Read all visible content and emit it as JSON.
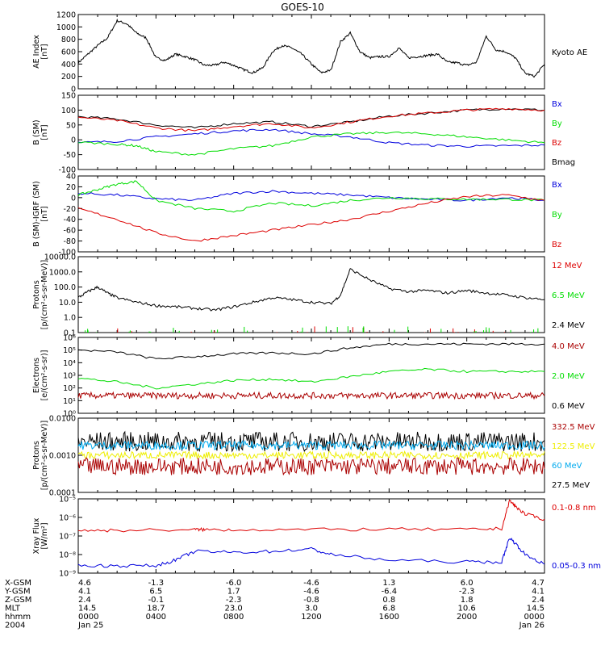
{
  "title": "GOES-10",
  "colors": {
    "black": "#000000",
    "red": "#dd0000",
    "green": "#00dd00",
    "blue": "#0000dd",
    "darkred": "#aa0000",
    "yellow": "#eeee00",
    "cyan": "#00aaee"
  },
  "chart_data": [
    {
      "type": "line",
      "name": "ae",
      "ylabel": "AE Index\n[nT]",
      "ylim": [
        0,
        1200
      ],
      "yticks": [
        "0",
        "200",
        "400",
        "600",
        "800",
        "1000",
        "1200"
      ],
      "legend": [
        {
          "label": "Kyoto AE",
          "color": "black"
        }
      ],
      "series": [
        {
          "name": "Kyoto AE",
          "color": "black",
          "x": [
            0,
            0.5,
            1,
            1.5,
            2,
            2.5,
            3,
            3.5,
            4,
            4.5,
            5,
            5.5,
            6,
            6.5,
            7,
            7.5,
            8,
            8.5,
            9,
            9.5,
            10,
            10.5,
            11,
            11.5,
            12,
            12.5,
            13,
            13.5,
            14,
            14.5,
            15,
            15.5,
            16,
            16.5,
            17,
            17.5,
            18,
            18.5,
            19,
            19.5,
            20,
            20.5,
            21,
            21.5,
            22,
            22.5,
            23,
            23.5,
            24
          ],
          "y": [
            420,
            560,
            700,
            820,
            1100,
            1050,
            900,
            820,
            500,
            460,
            560,
            520,
            470,
            380,
            380,
            430,
            380,
            310,
            260,
            340,
            600,
            700,
            660,
            560,
            400,
            260,
            300,
            760,
            900,
            600,
            500,
            520,
            520,
            660,
            500,
            520,
            540,
            560,
            430,
            420,
            380,
            430,
            850,
            630,
            600,
            500,
            250,
            200,
            400
          ]
        }
      ]
    },
    {
      "type": "line",
      "name": "bsm",
      "ylabel": "B (SM)\n[nT]",
      "ylim": [
        -100,
        150
      ],
      "yticks": [
        "-100",
        "-50",
        "0",
        "50",
        "100",
        "150"
      ],
      "legend": [
        {
          "label": "Bx",
          "color": "blue"
        },
        {
          "label": "By",
          "color": "green"
        },
        {
          "label": "Bz",
          "color": "red"
        },
        {
          "label": "Bmag",
          "color": "black"
        }
      ],
      "series": [
        {
          "name": "Bmag",
          "color": "black",
          "x": [
            0,
            2,
            4,
            6,
            8,
            10,
            12,
            14,
            16,
            18,
            20,
            22,
            24
          ],
          "y": [
            78,
            70,
            50,
            40,
            55,
            60,
            45,
            60,
            80,
            90,
            100,
            105,
            100
          ]
        },
        {
          "name": "Bz",
          "color": "red",
          "x": [
            0,
            2,
            4,
            6,
            8,
            10,
            12,
            14,
            16,
            18,
            20,
            22,
            24
          ],
          "y": [
            76,
            65,
            40,
            30,
            45,
            55,
            40,
            60,
            80,
            90,
            100,
            105,
            100
          ]
        },
        {
          "name": "Bx",
          "color": "blue",
          "x": [
            0,
            2,
            4,
            6,
            8,
            10,
            12,
            14,
            16,
            18,
            20,
            22,
            24
          ],
          "y": [
            -10,
            -5,
            10,
            20,
            30,
            35,
            20,
            10,
            -10,
            -18,
            -22,
            -20,
            -18
          ]
        },
        {
          "name": "By",
          "color": "green",
          "x": [
            0,
            2,
            3,
            4,
            6,
            8,
            10,
            12,
            14,
            16,
            18,
            20,
            22,
            24
          ],
          "y": [
            -8,
            -15,
            -20,
            -40,
            -50,
            -30,
            -20,
            10,
            20,
            25,
            20,
            10,
            0,
            -10
          ]
        }
      ]
    },
    {
      "type": "line",
      "name": "bdiff",
      "ylabel": "B (SM)-IGRF (SM)\n[nT]",
      "ylim": [
        -100,
        40
      ],
      "yticks": [
        "-100",
        "-80",
        "-60",
        "-40",
        "-20",
        "0",
        "20",
        "40"
      ],
      "legend": [
        {
          "label": "Bx",
          "color": "blue"
        },
        {
          "label": "By",
          "color": "green"
        },
        {
          "label": "Bz",
          "color": "red"
        }
      ],
      "series": [
        {
          "name": "Bx",
          "color": "blue",
          "x": [
            0,
            2,
            4,
            6,
            8,
            10,
            12,
            14,
            16,
            18,
            20,
            22,
            24
          ],
          "y": [
            8,
            5,
            -2,
            -5,
            8,
            12,
            8,
            5,
            0,
            -3,
            -5,
            0,
            -5
          ]
        },
        {
          "name": "By",
          "color": "green",
          "x": [
            0,
            1,
            2,
            3,
            4,
            6,
            8,
            10,
            12,
            14,
            16,
            18,
            20,
            22,
            24
          ],
          "y": [
            5,
            15,
            25,
            30,
            -5,
            -20,
            -25,
            -10,
            -15,
            -5,
            0,
            -2,
            -3,
            -3,
            -5
          ]
        },
        {
          "name": "Bz",
          "color": "red",
          "x": [
            0,
            2,
            4,
            6,
            8,
            10,
            12,
            14,
            16,
            18,
            20,
            22,
            24
          ],
          "y": [
            -20,
            -40,
            -65,
            -80,
            -70,
            -60,
            -50,
            -40,
            -25,
            -10,
            2,
            5,
            -5
          ]
        }
      ]
    },
    {
      "type": "line",
      "name": "protons1",
      "log": true,
      "ylabel": "Protons\n[p/(cm²-s-sr-MeV)]",
      "ylim": [
        0.1,
        10000
      ],
      "yticks": [
        "0.1",
        "1.0",
        "10.0",
        "100.0",
        "1000.0",
        "10000.0"
      ],
      "legend": [
        {
          "label": "12 MeV",
          "color": "red"
        },
        {
          "label": "6.5 MeV",
          "color": "green"
        },
        {
          "label": "2.4 MeV",
          "color": "black"
        }
      ],
      "series": [
        {
          "name": "2.4 MeV",
          "color": "black",
          "x": [
            0,
            0.5,
            1,
            1.5,
            2,
            3,
            4,
            5,
            6,
            7,
            8,
            9,
            10,
            11,
            12,
            13,
            13.5,
            14,
            15,
            16,
            17,
            18,
            19,
            20,
            21,
            22,
            23,
            24
          ],
          "y": [
            20,
            50,
            100,
            40,
            20,
            10,
            6,
            5,
            4,
            3,
            5,
            10,
            20,
            15,
            10,
            8,
            30,
            1500,
            300,
            80,
            50,
            60,
            40,
            60,
            40,
            30,
            20,
            15
          ]
        }
      ]
    },
    {
      "type": "line",
      "name": "electrons",
      "log": true,
      "ylabel": "Electrons\n[e/(cm²-s-sr)]",
      "ylim": [
        1,
        1000000
      ],
      "yticks": [
        "10⁰",
        "10¹",
        "10²",
        "10³",
        "10⁴",
        "10⁵",
        "10⁶"
      ],
      "legend": [
        {
          "label": "4.0 MeV",
          "color": "darkred"
        },
        {
          "label": "2.0 MeV",
          "color": "green"
        },
        {
          "label": "0.6 MeV",
          "color": "black"
        }
      ],
      "series": [
        {
          "name": "0.6 MeV",
          "color": "black",
          "x": [
            0,
            2,
            4,
            6,
            8,
            10,
            12,
            14,
            16,
            18,
            20,
            22,
            24
          ],
          "y": [
            100000,
            70000,
            20000,
            30000,
            50000,
            60000,
            50000,
            150000,
            300000,
            300000,
            300000,
            300000,
            300000
          ]
        },
        {
          "name": "2.0 MeV",
          "color": "green",
          "x": [
            0,
            2,
            4,
            6,
            8,
            10,
            12,
            14,
            16,
            18,
            20,
            22,
            24
          ],
          "y": [
            600,
            300,
            100,
            200,
            400,
            500,
            300,
            800,
            2000,
            3000,
            2000,
            2000,
            2000
          ]
        }
      ]
    },
    {
      "type": "line",
      "name": "protons2",
      "log": true,
      "ylabel": "Protons\n[p/(cm²-s-sr-MeV)]",
      "ylim": [
        0.0001,
        0.1
      ],
      "yticks": [
        "0.0001",
        "0.0010",
        "0.0100"
      ],
      "legend": [
        {
          "label": "332.5 MeV",
          "color": "darkred"
        },
        {
          "label": "122.5 MeV",
          "color": "yellow"
        },
        {
          "label": "60 MeV",
          "color": "cyan"
        },
        {
          "label": "27.5 MeV",
          "color": "black"
        }
      ],
      "series": []
    },
    {
      "type": "line",
      "name": "xray",
      "log": true,
      "ylabel": "Xray Flux\n[W/m²]",
      "ylim": [
        1e-09,
        1e-05
      ],
      "yticks": [
        "10⁻⁹",
        "10⁻⁸",
        "10⁻⁷",
        "10⁻⁶",
        "10⁻⁵"
      ],
      "legend": [
        {
          "label": "0.1-0.8 nm",
          "color": "red"
        },
        {
          "label": "0.05-0.3 nm",
          "color": "blue"
        }
      ],
      "series": [
        {
          "name": "0.1-0.8 nm",
          "color": "red",
          "x": [
            0,
            2,
            6,
            6.5,
            8,
            12,
            16,
            20,
            21.8,
            22.2,
            22.5,
            23,
            24
          ],
          "y": [
            2e-07,
            2e-07,
            2.2e-07,
            2.2e-07,
            2.2e-07,
            2.2e-07,
            2.3e-07,
            2.2e-07,
            2.5e-07,
            8e-06,
            4e-06,
            1.5e-06,
            8e-07
          ]
        },
        {
          "name": "0.05-0.3 nm",
          "color": "blue",
          "x": [
            0,
            2,
            4,
            5,
            6,
            8,
            10,
            12,
            13,
            16,
            20,
            21.8,
            22.2,
            22.5,
            23,
            24
          ],
          "y": [
            2.5e-09,
            2.5e-09,
            2.5e-09,
            5e-09,
            1.5e-08,
            1.3e-08,
            1.5e-08,
            2e-08,
            1e-08,
            5e-09,
            4e-09,
            4e-09,
            8e-08,
            4e-08,
            1e-08,
            3e-09
          ]
        }
      ]
    }
  ],
  "x_axis": {
    "row_labels": [
      "X-GSM",
      "Y-GSM",
      "Z-GSM",
      "MLT",
      "hhmm",
      "2004"
    ],
    "columns": [
      [
        "4.6",
        "4.1",
        "2.4",
        "14.5",
        "0000",
        "Jan 25"
      ],
      [
        "-1.3",
        "6.5",
        "-0.1",
        "18.7",
        "0400",
        ""
      ],
      [
        "-6.0",
        "1.7",
        "-2.3",
        "23.0",
        "0800",
        ""
      ],
      [
        "-4.6",
        "-4.6",
        "-0.8",
        "3.0",
        "1200",
        ""
      ],
      [
        "1.3",
        "-6.4",
        "0.8",
        "6.8",
        "1600",
        ""
      ],
      [
        "6.0",
        "-2.3",
        "1.8",
        "10.6",
        "2000",
        ""
      ],
      [
        "4.7",
        "4.1",
        "2.4",
        "14.5",
        "0000",
        "Jan 26"
      ]
    ]
  }
}
